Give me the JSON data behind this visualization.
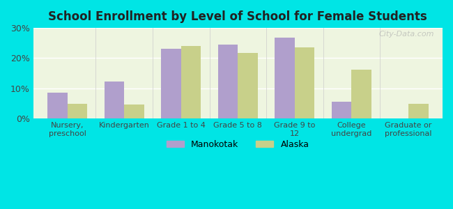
{
  "title": "School Enrollment by Level of School for Female Students",
  "categories": [
    "Nursery,\npreschool",
    "Kindergarten",
    "Grade 1 to 4",
    "Grade 5 to 8",
    "Grade 9 to\n12",
    "College\nundergrad",
    "Graduate or\nprofessional"
  ],
  "manokotak": [
    8.5,
    12.3,
    23.0,
    24.5,
    26.7,
    5.5,
    0.0
  ],
  "alaska": [
    5.0,
    4.7,
    24.0,
    21.7,
    23.5,
    16.2,
    4.8
  ],
  "manokotak_color": "#b09fcc",
  "alaska_color": "#c8d08a",
  "background_color": "#00e5e5",
  "plot_bg": "#eef5e0",
  "ylim": [
    0,
    30
  ],
  "yticks": [
    0,
    10,
    20,
    30
  ],
  "ytick_labels": [
    "0%",
    "10%",
    "20%",
    "30%"
  ],
  "watermark": "City-Data.com",
  "legend_manokotak": "Manokotak",
  "legend_alaska": "Alaska",
  "bar_width": 0.35
}
